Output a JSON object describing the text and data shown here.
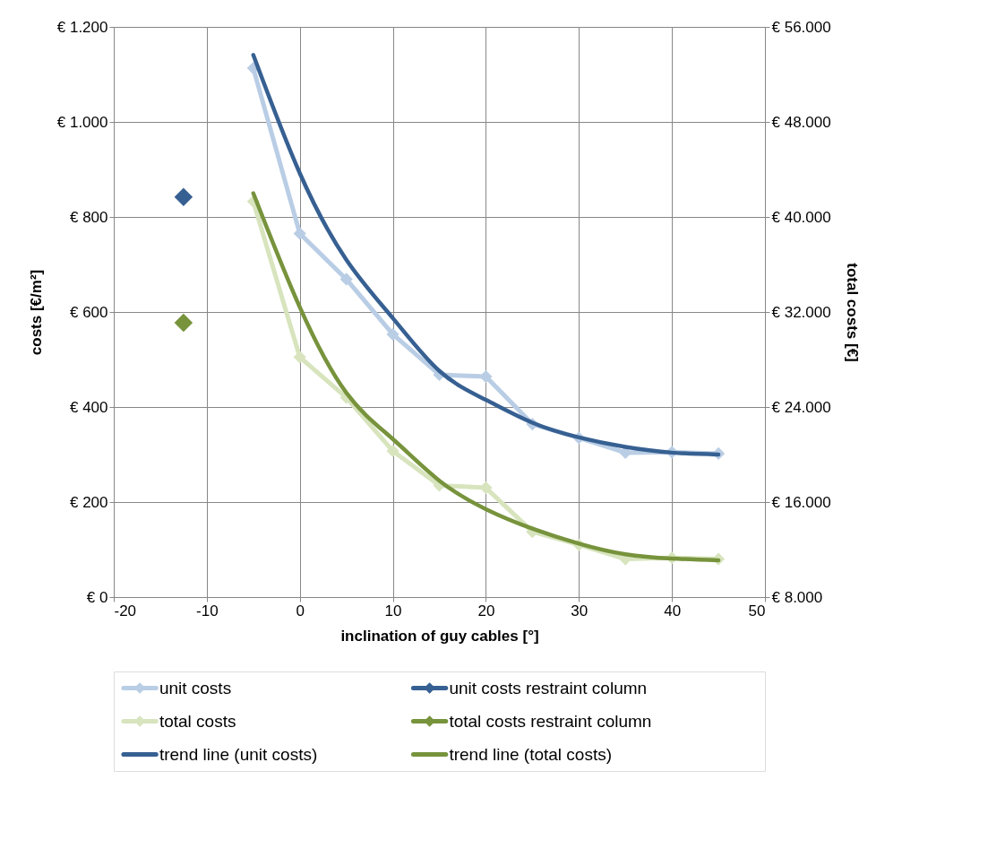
{
  "chart_data": {
    "type": "line",
    "xlabel": "inclination of guy cables   [°]",
    "ylabel": "costs   [€/m²]",
    "y2label": "total costs   [€]",
    "xlim": [
      -20,
      50
    ],
    "xticks": [
      -20,
      -10,
      0,
      10,
      20,
      30,
      40,
      50
    ],
    "ylim": [
      0,
      1200
    ],
    "yticks": [
      {
        "value": 0,
        "label": "€ 0"
      },
      {
        "value": 200,
        "label": "€ 200"
      },
      {
        "value": 400,
        "label": "€ 400"
      },
      {
        "value": 600,
        "label": "€ 600"
      },
      {
        "value": 800,
        "label": "€ 800"
      },
      {
        "value": 1000,
        "label": "€ 1.000"
      },
      {
        "value": 1200,
        "label": "€ 1.200"
      }
    ],
    "y2lim": [
      8000,
      56000
    ],
    "y2ticks": [
      {
        "value": 8000,
        "label": "€ 8.000"
      },
      {
        "value": 16000,
        "label": "€ 16.000"
      },
      {
        "value": 24000,
        "label": "€ 24.000"
      },
      {
        "value": 32000,
        "label": "€ 32.000"
      },
      {
        "value": 40000,
        "label": "€ 40.000"
      },
      {
        "value": 48000,
        "label": "€ 48.000"
      },
      {
        "value": 56000,
        "label": "€ 56.000"
      }
    ],
    "grid": true,
    "legend": "bottom",
    "line_style": "solid",
    "series": [
      {
        "name": "unit costs",
        "type": "line",
        "marker": "diamond",
        "color": "#b9cde5",
        "x": [
          -5,
          0,
          5,
          10,
          15,
          20,
          25,
          30,
          35,
          40,
          45
        ],
        "values": [
          1113,
          765,
          669,
          553,
          468,
          464,
          364,
          335,
          304,
          305,
          302
        ]
      },
      {
        "name": "unit costs restraint column",
        "type": "scatter",
        "marker": "diamond",
        "color": "#376092",
        "x": [
          -12.5
        ],
        "values": [
          842
        ]
      },
      {
        "name": "total costs",
        "type": "line",
        "marker": "diamond",
        "axis": "y2",
        "color": "#d7e4bd",
        "x": [
          -5,
          0,
          5,
          10,
          15,
          20,
          25,
          30,
          35,
          40,
          45
        ],
        "values": [
          41300,
          28200,
          24800,
          20300,
          17400,
          17200,
          13500,
          12400,
          11200,
          11300,
          11200
        ]
      },
      {
        "name": "total costs restraint column",
        "type": "scatter",
        "marker": "diamond",
        "axis": "y2",
        "color": "#77933c",
        "x": [
          -12.5
        ],
        "values": [
          31100
        ]
      },
      {
        "name": "trend line (unit costs)",
        "type": "line",
        "marker": "none",
        "color": "#376092",
        "x": [
          -5,
          0,
          5,
          10,
          15,
          20,
          25,
          30,
          35,
          40,
          45
        ],
        "values": [
          1141,
          892,
          710,
          587,
          476,
          415,
          367,
          336,
          316,
          304,
          300
        ]
      },
      {
        "name": "trend line (total costs)",
        "type": "line",
        "marker": "none",
        "axis": "y2",
        "color": "#77933c",
        "x": [
          -5,
          0,
          5,
          10,
          15,
          20,
          25,
          30,
          35,
          40,
          45
        ],
        "values": [
          42000,
          32400,
          25200,
          21300,
          17800,
          15400,
          13760,
          12500,
          11600,
          11240,
          11100
        ]
      }
    ]
  }
}
